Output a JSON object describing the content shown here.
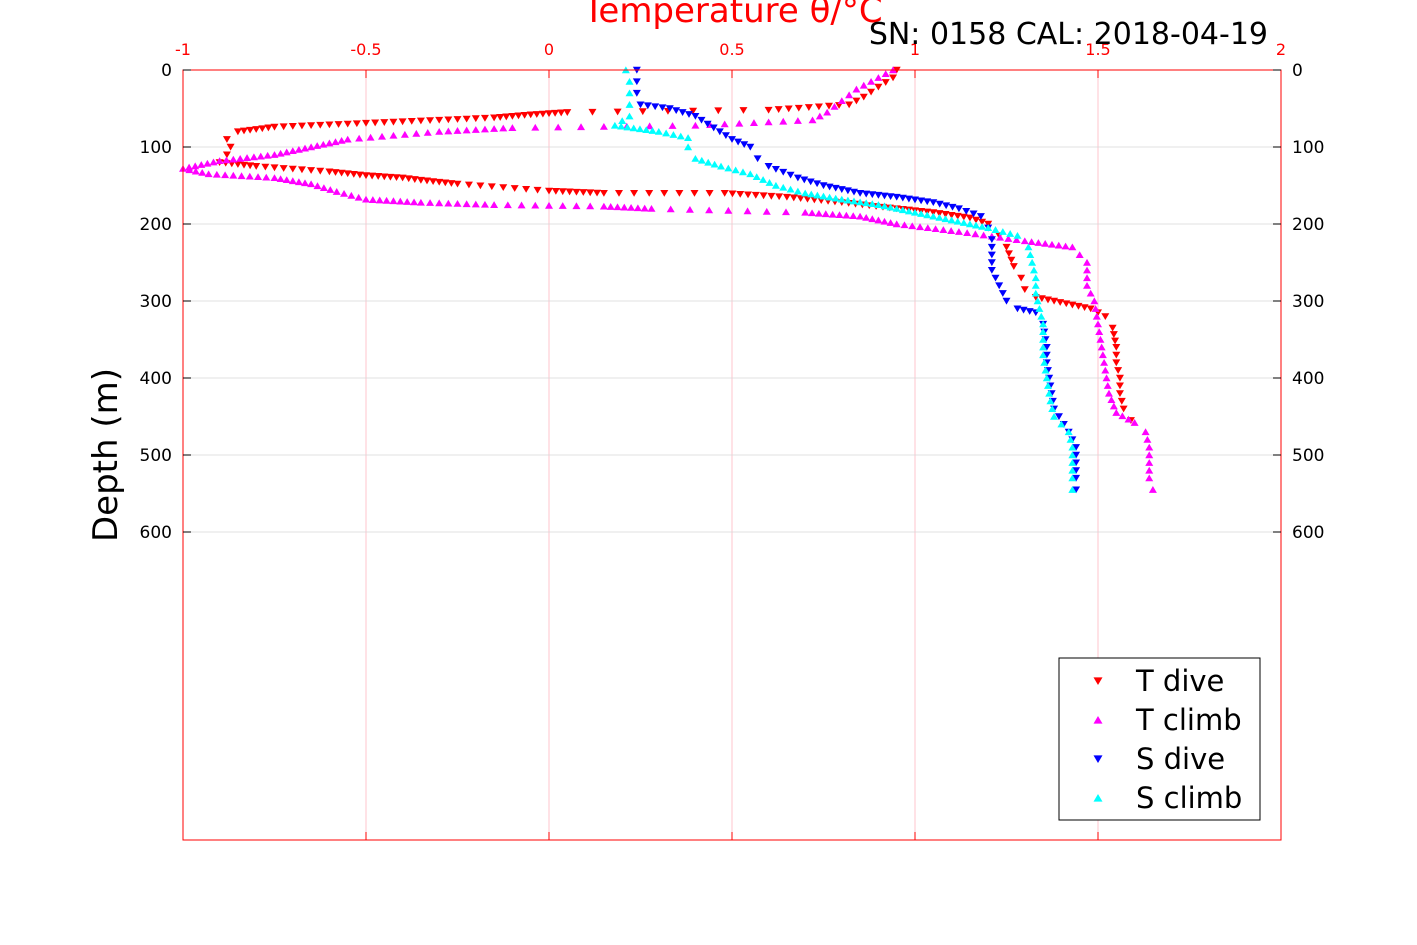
{
  "chart_data": {
    "type": "scatter",
    "title": "Temperature θ/°C",
    "annotation": "SN: 0158  CAL: 2018-04-19",
    "xlabel": "Temperature θ/°C",
    "ylabel": "Depth (m)",
    "xlim": [
      -1,
      2
    ],
    "ylim": [
      0,
      1000
    ],
    "y_reversed": true,
    "x_ticks": [
      "-1",
      "-0.5",
      "0",
      "0.5",
      "1",
      "1.5",
      "2"
    ],
    "x_tick_values": [
      -1,
      -0.5,
      0,
      0.5,
      1,
      1.5,
      2
    ],
    "y_ticks": [
      "0",
      "100",
      "200",
      "300",
      "400",
      "500",
      "600"
    ],
    "y_tick_values": [
      0,
      100,
      200,
      300,
      400,
      500,
      600
    ],
    "grid": true,
    "legend_position": "bottom-right",
    "colors": {
      "axis_top": "#ff0000",
      "grid_x": "#ffb6c1",
      "grid_y": "#d9d9d9",
      "frame": "#ff0000"
    },
    "series": [
      {
        "name": "T dive",
        "marker": "triangle-down",
        "color": "#ff0000",
        "points": [
          [
            0.95,
            0
          ],
          [
            0.94,
            10
          ],
          [
            0.9,
            22
          ],
          [
            0.86,
            35
          ],
          [
            0.82,
            45
          ],
          [
            0.6,
            52
          ],
          [
            0.05,
            55
          ],
          [
            -0.05,
            58
          ],
          [
            -0.15,
            62
          ],
          [
            -0.35,
            66
          ],
          [
            -0.55,
            70
          ],
          [
            -0.75,
            74
          ],
          [
            -0.85,
            80
          ],
          [
            -0.88,
            90
          ],
          [
            -0.87,
            100
          ],
          [
            -0.88,
            110
          ],
          [
            -0.9,
            120
          ],
          [
            -0.8,
            125
          ],
          [
            -0.6,
            132
          ],
          [
            -0.5,
            137
          ],
          [
            -0.4,
            140
          ],
          [
            -0.35,
            143
          ],
          [
            -0.25,
            148
          ],
          [
            0.0,
            157
          ],
          [
            0.15,
            160
          ],
          [
            0.48,
            160
          ],
          [
            0.65,
            165
          ],
          [
            0.8,
            172
          ],
          [
            0.95,
            180
          ],
          [
            1.05,
            185
          ],
          [
            1.15,
            192
          ],
          [
            1.2,
            200
          ],
          [
            1.23,
            215
          ],
          [
            1.25,
            230
          ],
          [
            1.27,
            255
          ],
          [
            1.29,
            270
          ],
          [
            1.3,
            285
          ],
          [
            1.33,
            295
          ],
          [
            1.43,
            305
          ],
          [
            1.48,
            310
          ],
          [
            1.52,
            320
          ],
          [
            1.54,
            335
          ],
          [
            1.55,
            360
          ],
          [
            1.55,
            380
          ],
          [
            1.56,
            400
          ],
          [
            1.56,
            420
          ],
          [
            1.57,
            440
          ],
          [
            1.59,
            455
          ]
        ]
      },
      {
        "name": "T climb",
        "marker": "triangle-up",
        "color": "#ff00ff",
        "points": [
          [
            0.94,
            0
          ],
          [
            0.88,
            15
          ],
          [
            0.84,
            25
          ],
          [
            0.8,
            40
          ],
          [
            0.76,
            55
          ],
          [
            0.72,
            65
          ],
          [
            0.4,
            72
          ],
          [
            -0.1,
            75
          ],
          [
            -0.3,
            80
          ],
          [
            -0.55,
            90
          ],
          [
            -0.65,
            100
          ],
          [
            -0.75,
            110
          ],
          [
            -0.9,
            118
          ],
          [
            -1.0,
            128
          ],
          [
            -0.93,
            135
          ],
          [
            -0.75,
            140
          ],
          [
            -0.65,
            148
          ],
          [
            -0.58,
            158
          ],
          [
            -0.5,
            168
          ],
          [
            -0.35,
            172
          ],
          [
            -0.15,
            175
          ],
          [
            0.15,
            177
          ],
          [
            0.28,
            180
          ],
          [
            0.7,
            185
          ],
          [
            0.85,
            190
          ],
          [
            0.95,
            200
          ],
          [
            1.12,
            210
          ],
          [
            1.3,
            222
          ],
          [
            1.43,
            230
          ],
          [
            1.47,
            250
          ],
          [
            1.47,
            280
          ],
          [
            1.49,
            300
          ],
          [
            1.5,
            330
          ],
          [
            1.51,
            360
          ],
          [
            1.52,
            390
          ],
          [
            1.53,
            420
          ],
          [
            1.55,
            445
          ],
          [
            1.6,
            458
          ],
          [
            1.63,
            470
          ],
          [
            1.64,
            490
          ],
          [
            1.64,
            510
          ],
          [
            1.64,
            530
          ],
          [
            1.65,
            545
          ]
        ]
      },
      {
        "name": "S dive",
        "marker": "triangle-down",
        "color": "#0000ff",
        "points": [
          [
            0.24,
            0
          ],
          [
            0.24,
            15
          ],
          [
            0.24,
            30
          ],
          [
            0.25,
            45
          ],
          [
            0.33,
            50
          ],
          [
            0.4,
            60
          ],
          [
            0.45,
            75
          ],
          [
            0.5,
            90
          ],
          [
            0.55,
            100
          ],
          [
            0.57,
            115
          ],
          [
            0.6,
            125
          ],
          [
            0.68,
            140
          ],
          [
            0.75,
            150
          ],
          [
            0.85,
            160
          ],
          [
            0.95,
            165
          ],
          [
            1.05,
            172
          ],
          [
            1.12,
            180
          ],
          [
            1.18,
            190
          ],
          [
            1.2,
            205
          ],
          [
            1.21,
            220
          ],
          [
            1.21,
            240
          ],
          [
            1.21,
            260
          ],
          [
            1.23,
            280
          ],
          [
            1.25,
            300
          ],
          [
            1.28,
            310
          ],
          [
            1.33,
            315
          ],
          [
            1.35,
            330
          ],
          [
            1.36,
            360
          ],
          [
            1.36,
            380
          ],
          [
            1.37,
            410
          ],
          [
            1.38,
            440
          ],
          [
            1.42,
            470
          ],
          [
            1.44,
            490
          ],
          [
            1.44,
            510
          ],
          [
            1.44,
            530
          ],
          [
            1.44,
            545
          ]
        ]
      },
      {
        "name": "S climb",
        "marker": "triangle-up",
        "color": "#00ffff",
        "points": [
          [
            0.21,
            0
          ],
          [
            0.22,
            15
          ],
          [
            0.22,
            30
          ],
          [
            0.22,
            45
          ],
          [
            0.22,
            60
          ],
          [
            0.18,
            72
          ],
          [
            0.3,
            80
          ],
          [
            0.38,
            88
          ],
          [
            0.38,
            100
          ],
          [
            0.4,
            115
          ],
          [
            0.47,
            125
          ],
          [
            0.55,
            135
          ],
          [
            0.62,
            150
          ],
          [
            0.7,
            160
          ],
          [
            0.8,
            168
          ],
          [
            0.9,
            175
          ],
          [
            1.0,
            185
          ],
          [
            1.1,
            195
          ],
          [
            1.2,
            205
          ],
          [
            1.28,
            215
          ],
          [
            1.31,
            230
          ],
          [
            1.32,
            250
          ],
          [
            1.33,
            270
          ],
          [
            1.33,
            290
          ],
          [
            1.34,
            310
          ],
          [
            1.35,
            330
          ],
          [
            1.35,
            350
          ],
          [
            1.35,
            370
          ],
          [
            1.36,
            400
          ],
          [
            1.37,
            430
          ],
          [
            1.38,
            450
          ],
          [
            1.42,
            470
          ],
          [
            1.43,
            490
          ],
          [
            1.43,
            510
          ],
          [
            1.43,
            530
          ],
          [
            1.43,
            545
          ]
        ]
      }
    ]
  }
}
